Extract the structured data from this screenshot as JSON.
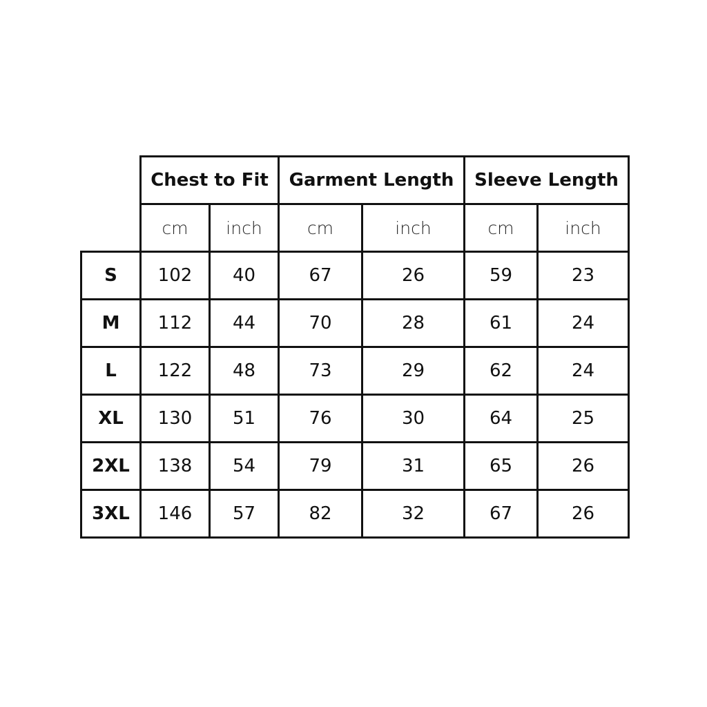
{
  "groups": [
    "Chest to Fit",
    "Garment Length",
    "Sleeve Length"
  ],
  "units": [
    "cm",
    "inch",
    "cm",
    "inch",
    "cm",
    "inch"
  ],
  "rows": [
    {
      "size": "S",
      "values": [
        "102",
        "40",
        "67",
        "26",
        "59",
        "23"
      ]
    },
    {
      "size": "M",
      "values": [
        "112",
        "44",
        "70",
        "28",
        "61",
        "24"
      ]
    },
    {
      "size": "L",
      "values": [
        "122",
        "48",
        "73",
        "29",
        "62",
        "24"
      ]
    },
    {
      "size": "XL",
      "values": [
        "130",
        "51",
        "76",
        "30",
        "64",
        "25"
      ]
    },
    {
      "size": "2XL",
      "values": [
        "138",
        "54",
        "79",
        "31",
        "65",
        "26"
      ]
    },
    {
      "size": "3XL",
      "values": [
        "146",
        "57",
        "82",
        "32",
        "67",
        "26"
      ]
    }
  ]
}
